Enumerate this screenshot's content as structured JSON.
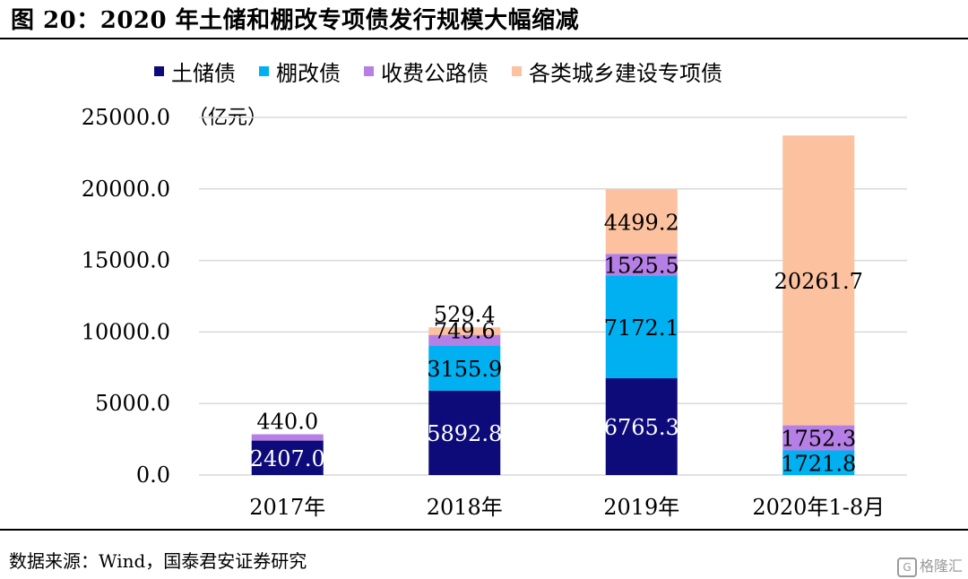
{
  "figure": {
    "title": "图 20：2020 年土储和棚改专项债发行规模大幅缩减",
    "source": "数据来源：Wind，国泰君安证券研究",
    "watermark": "格隆汇"
  },
  "chart_data": {
    "type": "bar",
    "stacked": true,
    "unit_label": "（亿元）",
    "categories": [
      "2017年",
      "2018年",
      "2019年",
      "2020年1-8月"
    ],
    "ylim": [
      0,
      25000
    ],
    "yticks": [
      "0.0",
      "5000.0",
      "10000.0",
      "15000.0",
      "20000.0",
      "25000.0"
    ],
    "ytick_values": [
      0,
      5000,
      10000,
      15000,
      20000,
      25000
    ],
    "grid": true,
    "legend_position": "top",
    "series": [
      {
        "name": "土储债",
        "color": "#0d0b7a",
        "label_color": "#ffffff",
        "values": [
          2407.0,
          5892.8,
          6765.3,
          null
        ],
        "labels": [
          "2407.0",
          "5892.8",
          "6765.3",
          ""
        ]
      },
      {
        "name": "棚改债",
        "color": "#00b0f0",
        "label_color": "#000000",
        "values": [
          null,
          3155.9,
          7172.1,
          1721.8
        ],
        "labels": [
          "",
          "3155.9",
          "7172.1",
          "1721.8"
        ]
      },
      {
        "name": "收费公路债",
        "color": "#b57fe6",
        "label_color": "#000000",
        "values": [
          440.0,
          749.6,
          1525.5,
          1752.3
        ],
        "labels": [
          "440.0",
          "749.6",
          "1525.5",
          "1752.3"
        ]
      },
      {
        "name": "各类城乡建设专项债",
        "color": "#fcc19f",
        "label_color": "#000000",
        "values": [
          null,
          529.4,
          4499.2,
          20261.7
        ],
        "labels": [
          "",
          "529.4",
          "4499.2",
          "20261.7"
        ]
      }
    ]
  }
}
